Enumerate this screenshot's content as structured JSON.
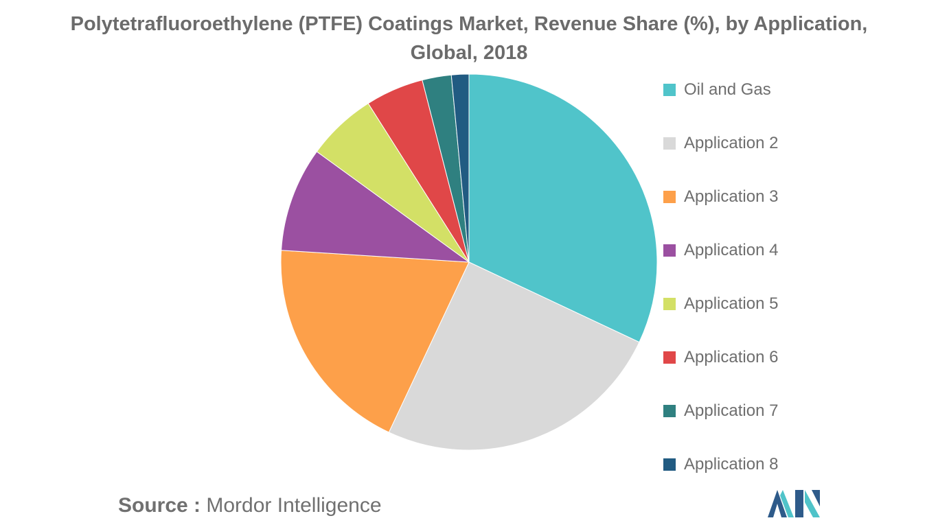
{
  "title": {
    "line1": "Polytetrafluoroethylene (PTFE) Coatings Market, Revenue Share (%), by Application,",
    "line2": "Global, 2018"
  },
  "source": {
    "label": "Source :",
    "text": "Mordor Intelligence"
  },
  "logo": {
    "icon": "mordor-intelligence-logo",
    "colors": [
      "#2e5b8a",
      "#4fc3c9"
    ]
  },
  "chart_data": {
    "type": "pie",
    "start_angle_deg": 0,
    "direction": "clockwise",
    "legend_position": "right",
    "slices": [
      {
        "label": "Oil and Gas",
        "value": 32,
        "color": "#50c4ca"
      },
      {
        "label": "Application 2",
        "value": 25,
        "color": "#d9d9d9"
      },
      {
        "label": "Application 3",
        "value": 19,
        "color": "#fda04a"
      },
      {
        "label": "Application 4",
        "value": 9,
        "color": "#9b50a1"
      },
      {
        "label": "Application 5",
        "value": 6,
        "color": "#d3e066"
      },
      {
        "label": "Application 6",
        "value": 5,
        "color": "#e04748"
      },
      {
        "label": "Application 7",
        "value": 2.5,
        "color": "#2f8080"
      },
      {
        "label": "Application 8",
        "value": 1.5,
        "color": "#215b82"
      }
    ]
  }
}
